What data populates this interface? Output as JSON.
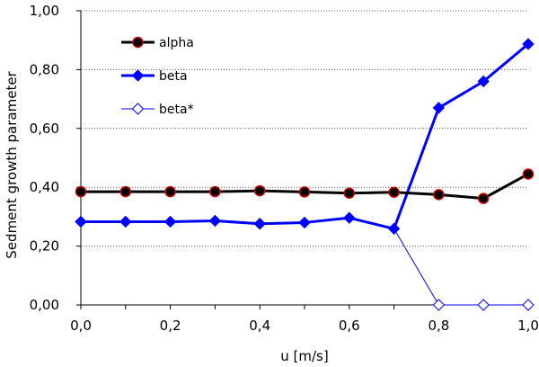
{
  "chart_data": {
    "type": "line",
    "xlabel": "u [m/s]",
    "ylabel": "Sedment growth parameter",
    "xlim": [
      0,
      1.0
    ],
    "ylim": [
      0,
      1.0
    ],
    "x_ticks": [
      "0,0",
      "0,2",
      "0,4",
      "0,6",
      "0,8",
      "1,0"
    ],
    "x_tick_values": [
      0,
      0.2,
      0.4,
      0.6,
      0.8,
      1.0
    ],
    "y_ticks": [
      "0,00",
      "0,20",
      "0,40",
      "0,60",
      "0,80",
      "1,00"
    ],
    "y_tick_values": [
      0,
      0.2,
      0.4,
      0.6,
      0.8,
      1.0
    ],
    "grid": "horizontal dotted",
    "legend_position": "top-left",
    "series": [
      {
        "name": "alpha",
        "color": "#000000",
        "marker": "circle-filled-red-edge",
        "marker_fill": "#000000",
        "marker_stroke": "#cc0000",
        "x": [
          0.0,
          0.1,
          0.2,
          0.3,
          0.4,
          0.5,
          0.6,
          0.7,
          0.8,
          0.9,
          1.0
        ],
        "y": [
          0.385,
          0.385,
          0.385,
          0.385,
          0.388,
          0.384,
          0.38,
          0.383,
          0.375,
          0.362,
          0.445
        ]
      },
      {
        "name": "beta",
        "color": "#0000ff",
        "marker": "diamond-filled",
        "x": [
          0.0,
          0.1,
          0.2,
          0.3,
          0.4,
          0.5,
          0.6,
          0.7,
          0.8,
          0.9,
          1.0
        ],
        "y": [
          0.283,
          0.283,
          0.283,
          0.286,
          0.276,
          0.28,
          0.296,
          0.259,
          0.67,
          0.76,
          0.887
        ]
      },
      {
        "name": "beta*",
        "color": "#0000ff",
        "marker": "diamond-open",
        "x": [
          0.7,
          0.8,
          0.9,
          1.0
        ],
        "y": [
          0.259,
          0.0,
          0.0,
          0.0
        ]
      }
    ]
  }
}
